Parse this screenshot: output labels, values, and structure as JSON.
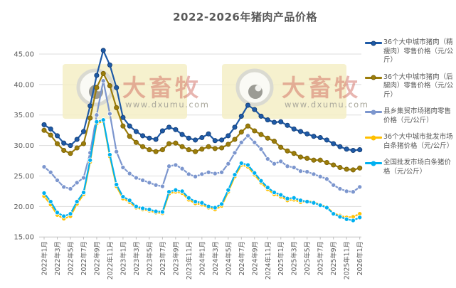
{
  "title": "2022-2026年猪肉产品价格",
  "watermark": {
    "brand": "大畜牧",
    "url": "www.dxumu.com",
    "box_fill": "#f4efc5",
    "brand_color": "rgba(205,90,80,0.45)",
    "url_color": "#aaa89c"
  },
  "colors": {
    "grid": "#dcdcdc",
    "axis": "#bfbfbf",
    "axis_text": "#595959",
    "title_text": "#595959"
  },
  "chart_data": {
    "type": "line",
    "title": "2022-2026年猪肉产品价格",
    "x_label_step_months": 2,
    "x_labels": [
      "2022年1月",
      "2022年3月",
      "2022年5月",
      "2022年7月",
      "2022年9月",
      "2022年11月",
      "2023年1月",
      "2023年3月",
      "2023年5月",
      "2023年7月",
      "2023年9月",
      "2023年11月",
      "2024年1月",
      "2024年3月",
      "2024年5月",
      "2024年7月",
      "2024年9月",
      "2024年11月",
      "2025年1月",
      "2025年3月",
      "2025年5月",
      "2025年7月",
      "2025年9月",
      "2025年11月",
      "2026年1月"
    ],
    "ylim": [
      15,
      45
    ],
    "y_ticks": [
      15,
      20,
      25,
      30,
      35,
      40,
      45
    ],
    "y_tick_labels": [
      "15.00",
      "20.00",
      "25.00",
      "30.00",
      "35.00",
      "40.00",
      "45.00"
    ],
    "grid": true,
    "legend_position": "right",
    "series": [
      {
        "name": "36个大中城市猪肉（精瘦肉）零售价格（元/公斤）",
        "color": "#1e5aa7",
        "marker_edge": "#143e75",
        "values": [
          33.4,
          32.7,
          31.6,
          30.4,
          30.0,
          31.0,
          32.3,
          36.5,
          41.5,
          45.6,
          43.2,
          39.5,
          34.6,
          33.2,
          32.3,
          31.6,
          31.2,
          31.0,
          32.4,
          33.0,
          32.6,
          31.8,
          31.2,
          30.9,
          31.3,
          31.9,
          30.8,
          30.9,
          31.6,
          33.0,
          34.8,
          36.6,
          35.9,
          34.8,
          34.2,
          33.8,
          33.9,
          33.3,
          32.7,
          32.3,
          31.9,
          31.5,
          31.3,
          30.9,
          30.3,
          29.8,
          29.4,
          29.2,
          29.3
        ]
      },
      {
        "name": "36个大中城市猪肉（后腿肉）零售价格（元/公斤）",
        "color": "#9c7d0a",
        "marker_edge": "#7a6208",
        "values": [
          32.5,
          31.7,
          30.3,
          29.2,
          28.7,
          29.6,
          30.3,
          34.5,
          39.5,
          41.8,
          39.8,
          36.2,
          33.2,
          31.5,
          30.5,
          29.8,
          29.3,
          29.0,
          29.3,
          30.3,
          30.4,
          29.8,
          29.3,
          29.0,
          29.4,
          29.8,
          29.5,
          29.6,
          30.2,
          31.0,
          32.2,
          33.2,
          32.4,
          31.8,
          31.2,
          30.7,
          29.7,
          29.1,
          28.7,
          28.1,
          27.9,
          27.6,
          27.6,
          27.2,
          26.8,
          26.4,
          26.1,
          26.0,
          26.3
        ]
      },
      {
        "name": "县乡集贸市场猪肉零售价格（元/公斤）",
        "color": "#7c96ce",
        "marker_edge": "#ffffff",
        "values": [
          26.5,
          25.6,
          24.3,
          23.2,
          22.9,
          23.9,
          24.7,
          28.8,
          35.0,
          40.6,
          35.2,
          29.0,
          26.4,
          25.4,
          24.7,
          24.3,
          23.9,
          23.5,
          23.3,
          26.6,
          26.8,
          26.2,
          25.3,
          24.9,
          25.3,
          25.6,
          25.4,
          25.6,
          27.0,
          28.8,
          30.5,
          31.6,
          30.5,
          29.4,
          27.8,
          27.0,
          27.4,
          26.6,
          26.4,
          25.8,
          25.7,
          25.3,
          24.9,
          24.5,
          23.5,
          22.9,
          22.5,
          22.4,
          23.2
        ]
      },
      {
        "name": "36个大中城市批发市场白条猪价格（元/公斤）",
        "color": "#ffc000",
        "marker_edge": "#ffffff",
        "values": [
          21.7,
          20.3,
          18.6,
          18.0,
          18.4,
          20.4,
          22.0,
          27.3,
          33.6,
          34.0,
          28.2,
          23.3,
          21.3,
          20.7,
          19.8,
          19.5,
          19.3,
          19.0,
          18.9,
          22.1,
          22.4,
          22.2,
          21.1,
          20.5,
          20.3,
          19.8,
          19.5,
          20.1,
          22.4,
          24.9,
          26.8,
          26.5,
          25.2,
          23.9,
          22.8,
          22.0,
          21.6,
          21.0,
          21.1,
          20.7,
          20.9,
          20.7,
          20.3,
          19.9,
          18.9,
          18.5,
          18.2,
          18.3,
          18.8
        ]
      },
      {
        "name": "全国批发市场白条猪价格（元/公斤）",
        "color": "#00b0f0",
        "marker_edge": "#ffffff",
        "values": [
          22.2,
          20.8,
          19.0,
          18.4,
          18.8,
          20.8,
          22.3,
          27.6,
          33.9,
          34.2,
          28.5,
          23.6,
          21.6,
          21.0,
          20.0,
          19.7,
          19.5,
          19.2,
          19.1,
          22.4,
          22.7,
          22.5,
          21.4,
          20.8,
          20.6,
          20.0,
          19.8,
          20.4,
          22.7,
          25.2,
          27.1,
          26.8,
          25.5,
          24.2,
          23.1,
          22.3,
          21.9,
          21.3,
          21.4,
          21.0,
          20.8,
          20.6,
          20.2,
          19.8,
          18.8,
          18.3,
          17.9,
          17.7,
          18.2
        ]
      }
    ],
    "watermark_boxes": [
      {
        "x": 88,
        "y": 90,
        "w": 175,
        "h": 77
      },
      {
        "x": 312,
        "y": 90,
        "w": 175,
        "h": 77
      }
    ]
  }
}
